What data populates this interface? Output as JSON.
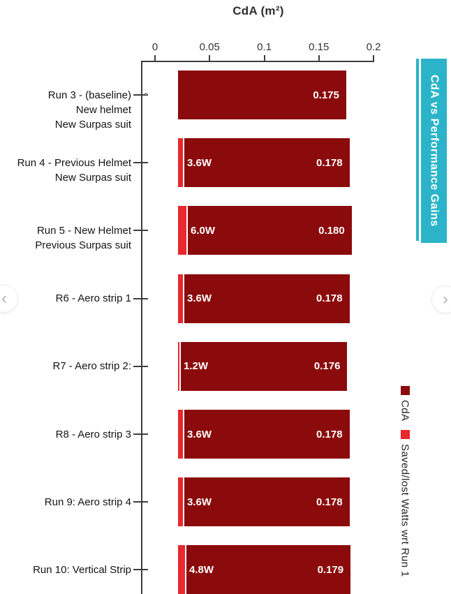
{
  "nav": {
    "prev": "‹",
    "next": "›"
  },
  "colors": {
    "bar_dark": "#8B0A0B",
    "bar_bright": "#E8282E",
    "banner_cyan": "#2BB4C9",
    "axis": "#3d3d3d"
  },
  "chart_data": {
    "type": "bar",
    "orientation": "horizontal",
    "title": "CdA (m²)",
    "annotation_banner": "CdA vs Performance Gains",
    "axis": {
      "position": "top",
      "ticks": [
        "0",
        "0.05",
        "0.1",
        "0.15",
        "0.2"
      ],
      "tick_values": [
        0,
        0.05,
        0.1,
        0.15,
        0.2
      ],
      "range": [
        0,
        0.2
      ]
    },
    "legend": [
      {
        "name": "CdA",
        "color": "#8B0A0B"
      },
      {
        "name": "Saved/lost Watts wrt Run 1",
        "color": "#E8282E"
      }
    ],
    "legend_position": "right",
    "rows": [
      {
        "label_lines": [
          "Run 3 - (baseline)",
          "New helmet",
          "New Surpas suit"
        ],
        "cda": 0.175,
        "cda_label": "0.175",
        "watts": 0,
        "watts_label": ""
      },
      {
        "label_lines": [
          "Run 4 - Previous Helmet",
          "New Surpas suit"
        ],
        "cda": 0.178,
        "cda_label": "0.178",
        "watts": 3.6,
        "watts_label": "3.6W"
      },
      {
        "label_lines": [
          "Run 5 - New Helmet",
          "Previous Surpas suit"
        ],
        "cda": 0.18,
        "cda_label": "0.180",
        "watts": 6.0,
        "watts_label": "6.0W"
      },
      {
        "label_lines": [
          "R6 - Aero strip 1"
        ],
        "cda": 0.178,
        "cda_label": "0.178",
        "watts": 3.6,
        "watts_label": "3.6W"
      },
      {
        "label_lines": [
          "R7 - Aero strip 2:"
        ],
        "cda": 0.176,
        "cda_label": "0.176",
        "watts": 1.2,
        "watts_label": "1.2W"
      },
      {
        "label_lines": [
          "R8 - Aero strip 3"
        ],
        "cda": 0.178,
        "cda_label": "0.178",
        "watts": 3.6,
        "watts_label": "3.6W"
      },
      {
        "label_lines": [
          "Run 9: Aero strip 4"
        ],
        "cda": 0.178,
        "cda_label": "0.178",
        "watts": 3.6,
        "watts_label": "3.6W"
      },
      {
        "label_lines": [
          "Run 10: Vertical Strip"
        ],
        "cda": 0.179,
        "cda_label": "0.179",
        "watts": 4.8,
        "watts_label": "4.8W"
      }
    ]
  }
}
